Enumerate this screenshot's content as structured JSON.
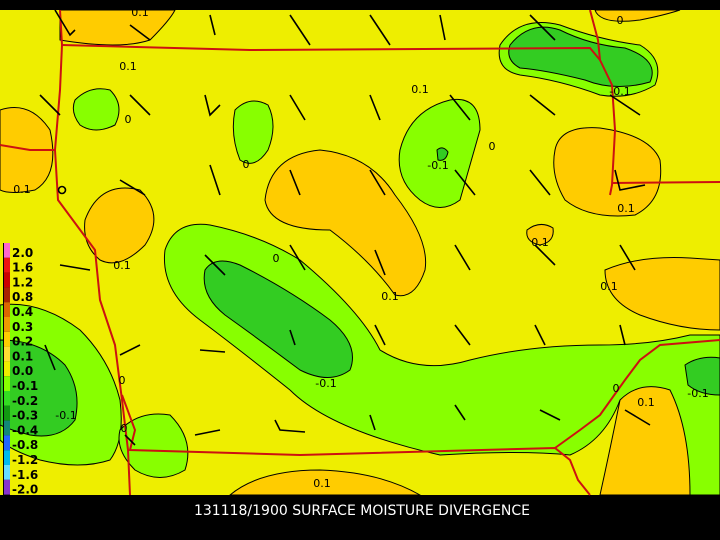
{
  "title": "131118/1900 SURFACE MOISTURE DIVERGENCE",
  "legend": {
    "labels": [
      "2.0",
      "1.6",
      "1.2",
      "0.8",
      "0.4",
      "0.3",
      "0.2",
      "0.1",
      "0.0",
      "-0.1",
      "-0.2",
      "-0.3",
      "-0.4",
      "-0.8",
      "-1.2",
      "-1.6",
      "-2.0"
    ],
    "colors": [
      "#ff66cc",
      "#ee1111",
      "#cc0000",
      "#aa2200",
      "#dd6600",
      "#ee9900",
      "#ffcc00",
      "#ffdd33",
      "#eeee00",
      "#88ff00",
      "#33dd22",
      "#119911",
      "#118877",
      "#2266ff",
      "#00bbee",
      "#66ddff",
      "#8833cc"
    ]
  },
  "contour_labels": [
    "0.1",
    "0.1",
    "0.1",
    "0",
    "-0.1",
    "0",
    "0",
    "-0.1",
    "0",
    "0.1",
    "0.1",
    "0.1",
    "0.1",
    "0",
    "0.1",
    "0.1",
    "-0.1",
    "0",
    "-0.1",
    "0.1",
    "-0.1",
    "0",
    "0",
    "0.1"
  ]
}
